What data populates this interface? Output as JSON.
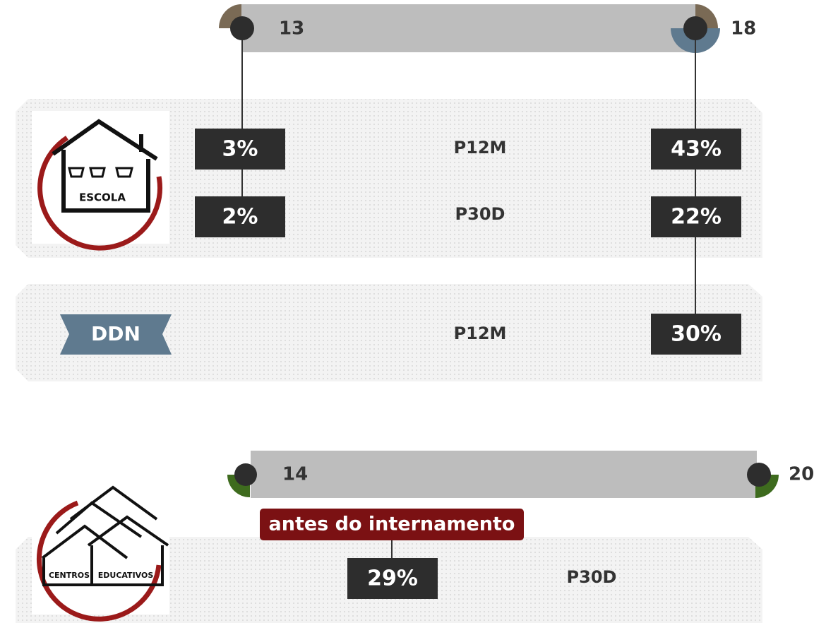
{
  "top": {
    "start": "13",
    "end": "18"
  },
  "escola": {
    "icon_label": "ESCOLA",
    "rows": [
      {
        "left": "3%",
        "period": "P12M",
        "right": "43%"
      },
      {
        "left": "2%",
        "period": "P30D",
        "right": "22%"
      }
    ]
  },
  "ddn": {
    "label": "DDN",
    "period": "P12M",
    "right": "30%"
  },
  "bottom": {
    "start": "14",
    "end": "20",
    "note": "antes do internamento"
  },
  "centros": {
    "icon_label_1": "CENTROS",
    "icon_label_2": "EDUCATIVOS",
    "value": "29%",
    "period": "P30D"
  }
}
